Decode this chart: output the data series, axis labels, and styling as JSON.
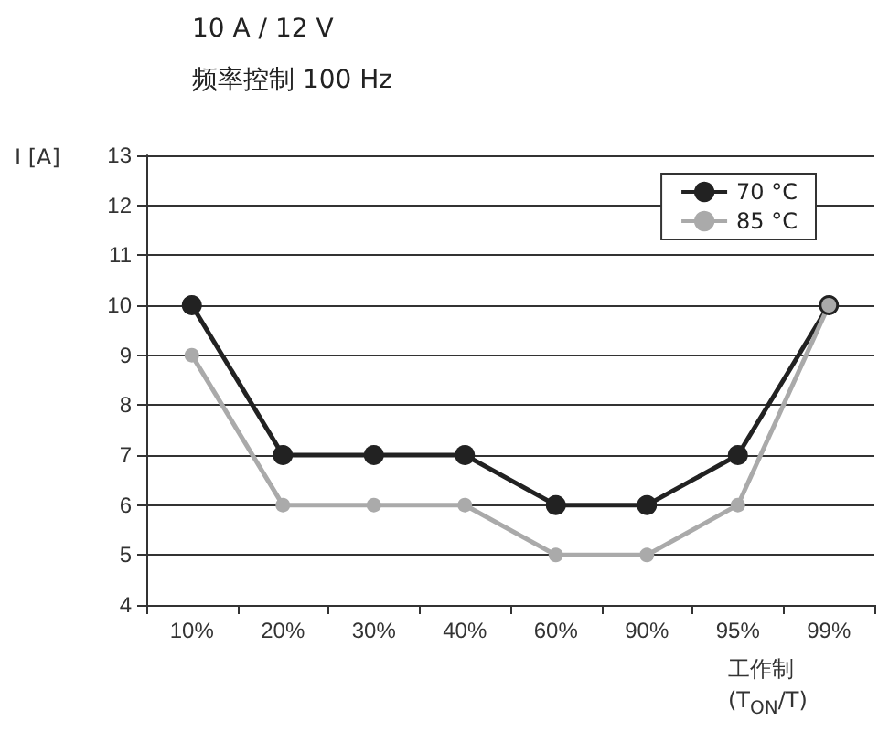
{
  "chart_data": {
    "type": "line",
    "title": "10 A / 12 V",
    "subtitle": "频率控制 100 Hz",
    "ylabel": "I [A]",
    "xlabel": "工作制\n(T$_{ON}$/T)",
    "categories": [
      "10%",
      "20%",
      "30%",
      "40%",
      "60%",
      "90%",
      "95%",
      "99%"
    ],
    "series": [
      {
        "name": "70 °C",
        "color": "#222222",
        "values": [
          10,
          7,
          7,
          7,
          6,
          6,
          7,
          10
        ]
      },
      {
        "name": "85 °C",
        "color": "#aaaaaa",
        "values": [
          9,
          6,
          6,
          6,
          5,
          5,
          6,
          10
        ]
      }
    ],
    "ylim": [
      4,
      13
    ],
    "yticks": [
      4,
      5,
      6,
      7,
      8,
      9,
      10,
      11,
      12,
      13
    ],
    "grid": "y",
    "legend": "top right",
    "marker": "circle",
    "line_style": "solid"
  }
}
